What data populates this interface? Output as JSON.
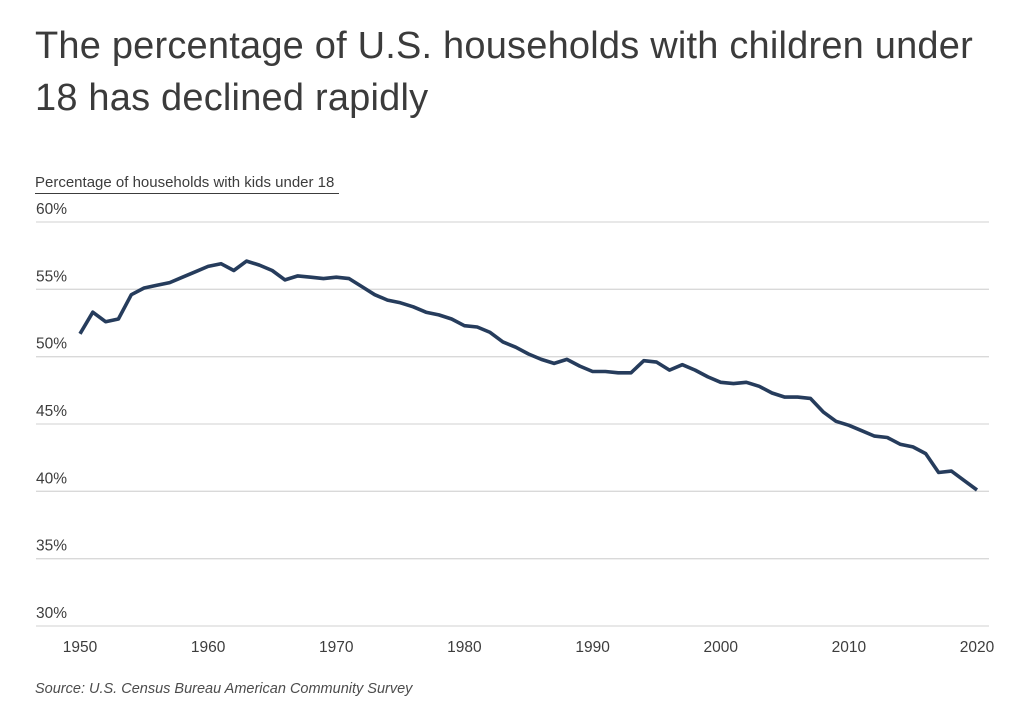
{
  "page": {
    "title": "The percentage of U.S. households with children under 18 has declined rapidly",
    "source": "Source: U.S. Census Bureau American Community Survey"
  },
  "chart_data": {
    "type": "line",
    "title": "The percentage of U.S. households with children under 18 has declined rapidly",
    "axis_label": "Percentage of households with kids under 18",
    "source": "Source: U.S. Census Bureau American Community Survey",
    "x": [
      1950,
      1951,
      1952,
      1953,
      1954,
      1955,
      1956,
      1957,
      1958,
      1959,
      1960,
      1961,
      1962,
      1963,
      1964,
      1965,
      1966,
      1967,
      1968,
      1969,
      1970,
      1971,
      1972,
      1973,
      1974,
      1975,
      1976,
      1977,
      1978,
      1979,
      1980,
      1981,
      1982,
      1983,
      1984,
      1985,
      1986,
      1987,
      1988,
      1989,
      1990,
      1991,
      1992,
      1993,
      1994,
      1995,
      1996,
      1997,
      1998,
      1999,
      2000,
      2001,
      2002,
      2003,
      2004,
      2005,
      2006,
      2007,
      2008,
      2009,
      2010,
      2011,
      2012,
      2013,
      2014,
      2015,
      2016,
      2017,
      2018,
      2019,
      2020
    ],
    "series": [
      {
        "name": "Percentage of households with kids under 18",
        "values": [
          51.7,
          53.3,
          52.6,
          52.8,
          54.6,
          55.1,
          55.3,
          55.5,
          55.9,
          56.3,
          56.7,
          56.9,
          56.4,
          57.1,
          56.8,
          56.4,
          55.7,
          56.0,
          55.9,
          55.8,
          55.9,
          55.8,
          55.2,
          54.6,
          54.2,
          54.0,
          53.7,
          53.3,
          53.1,
          52.8,
          52.3,
          52.2,
          51.8,
          51.1,
          50.7,
          50.2,
          49.8,
          49.5,
          49.8,
          49.3,
          48.9,
          48.9,
          48.8,
          48.8,
          49.7,
          49.6,
          49.0,
          49.4,
          49.0,
          48.5,
          48.1,
          48.0,
          48.1,
          47.8,
          47.3,
          47.0,
          47.0,
          46.9,
          45.9,
          45.2,
          44.9,
          44.5,
          44.1,
          44.0,
          43.5,
          43.3,
          42.8,
          41.4,
          41.5,
          40.8,
          40.1
        ]
      }
    ],
    "ylim": [
      30,
      60
    ],
    "yticks": [
      30,
      35,
      40,
      45,
      50,
      55,
      60
    ],
    "ytick_labels": [
      "30%",
      "35%",
      "40%",
      "45%",
      "50%",
      "55%",
      "60%"
    ],
    "xticks": [
      1950,
      1960,
      1970,
      1980,
      1990,
      2000,
      2010,
      2020
    ],
    "grid": "horizontal",
    "legend_position": "none",
    "line_color": "#263c5c",
    "grid_color": "#d9d9d9",
    "text_color": "#3d3d3d"
  }
}
